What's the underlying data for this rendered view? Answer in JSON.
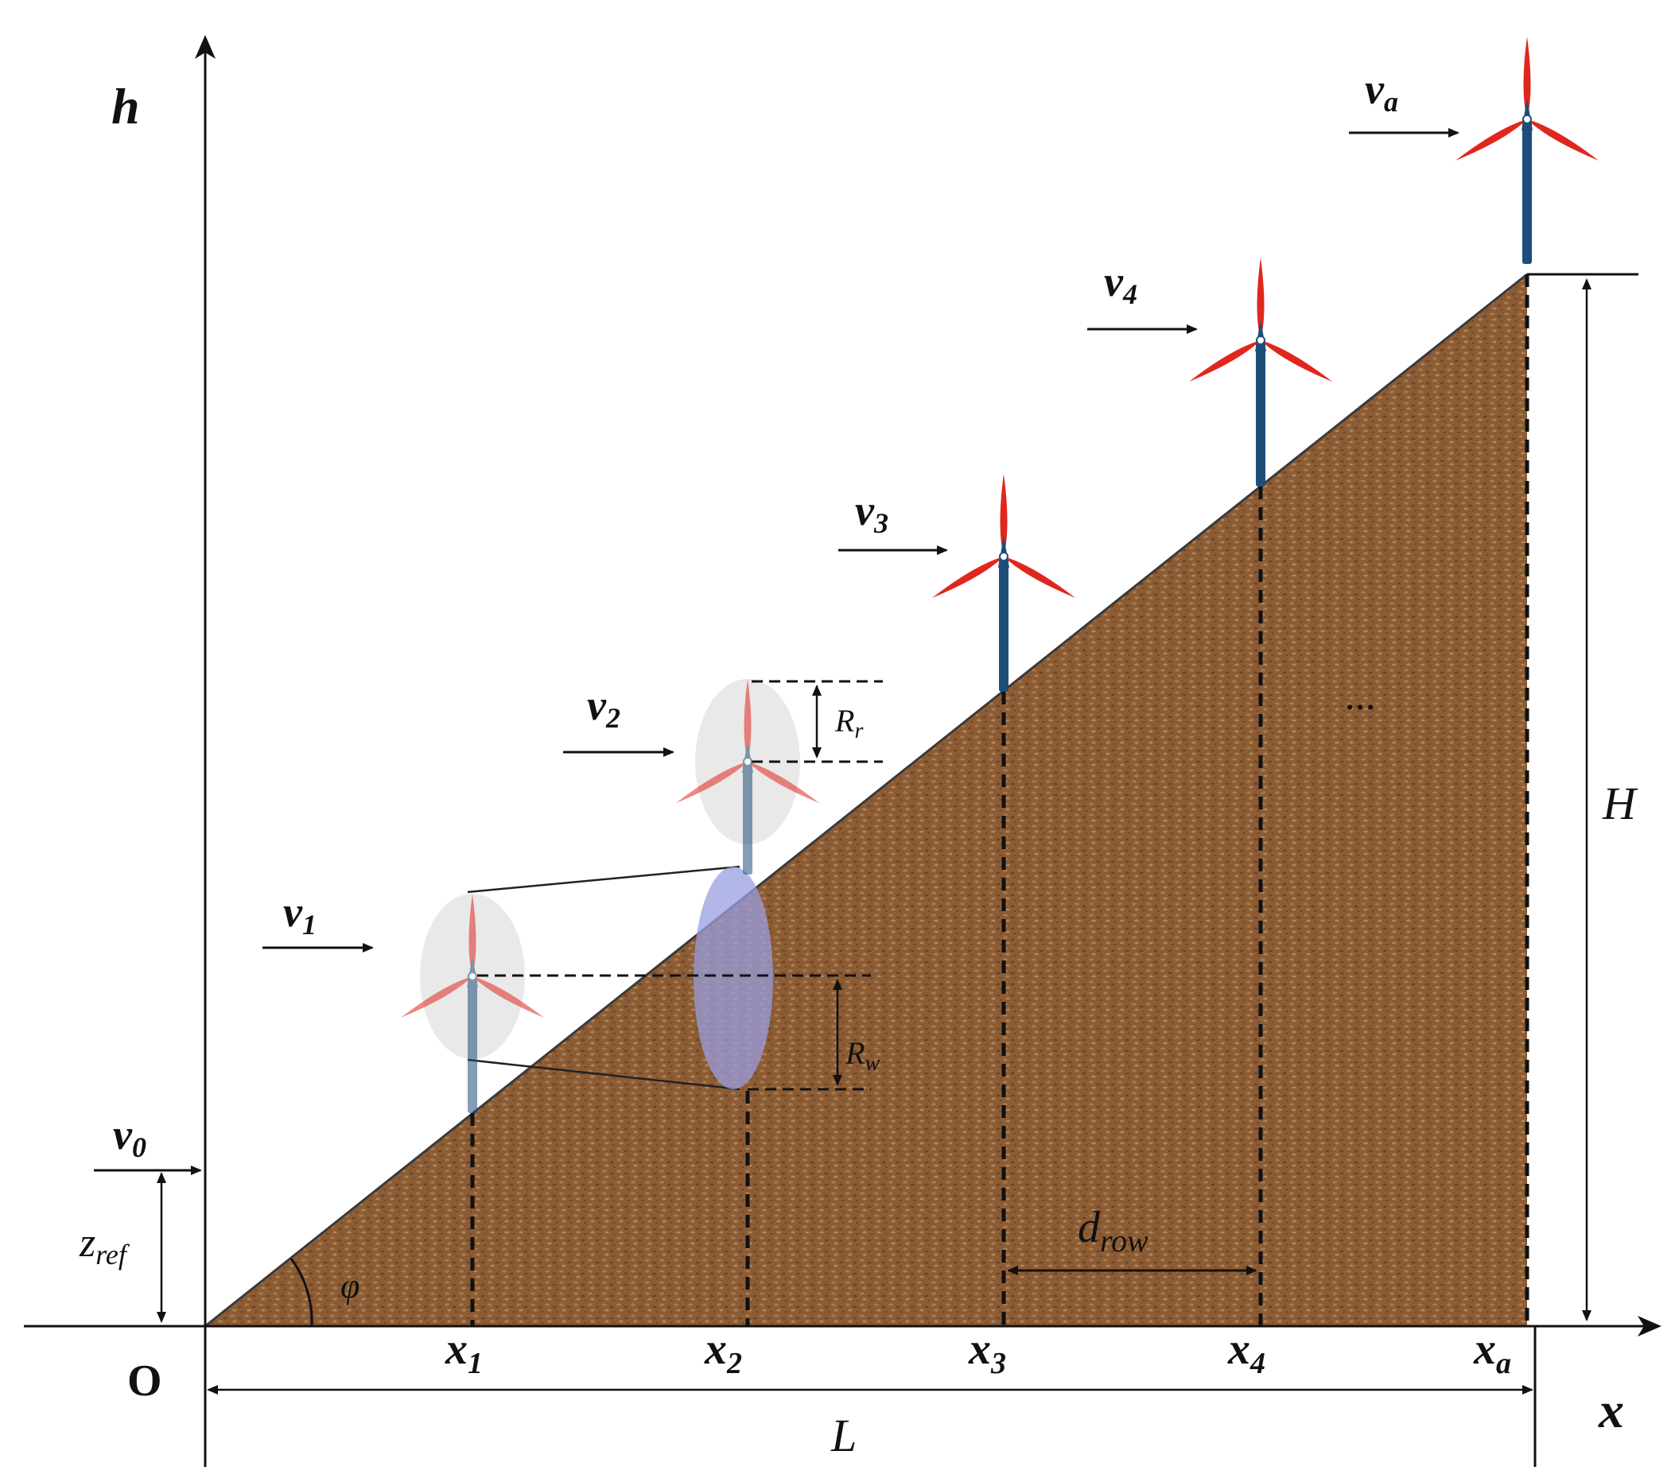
{
  "axes": {
    "vertical_label": "h",
    "horizontal_label": "x",
    "origin_label": "O"
  },
  "wind_speeds": [
    "v",
    "v",
    "v",
    "v",
    "v",
    "v"
  ],
  "wind_speed_subscripts": [
    "0",
    "1",
    "2",
    "3",
    "4",
    "a"
  ],
  "positions": [
    "x",
    "x",
    "x",
    "x",
    "x"
  ],
  "position_subscripts": [
    "1",
    "2",
    "3",
    "4",
    "a"
  ],
  "dimensions": {
    "length": "L",
    "height": "H",
    "angle": "φ",
    "reference_height": "z",
    "reference_height_sub": "ref",
    "row_spacing": "d",
    "row_spacing_sub": "row",
    "rotor_radius": "R",
    "rotor_radius_sub": "r",
    "wake_radius": "R",
    "wake_radius_sub": "w"
  },
  "continuation": "...",
  "colors": {
    "terrain": "#8a5a33",
    "blade": "#e0271e",
    "tower": "#1d4e7a",
    "wake": "#9a9ee0"
  }
}
